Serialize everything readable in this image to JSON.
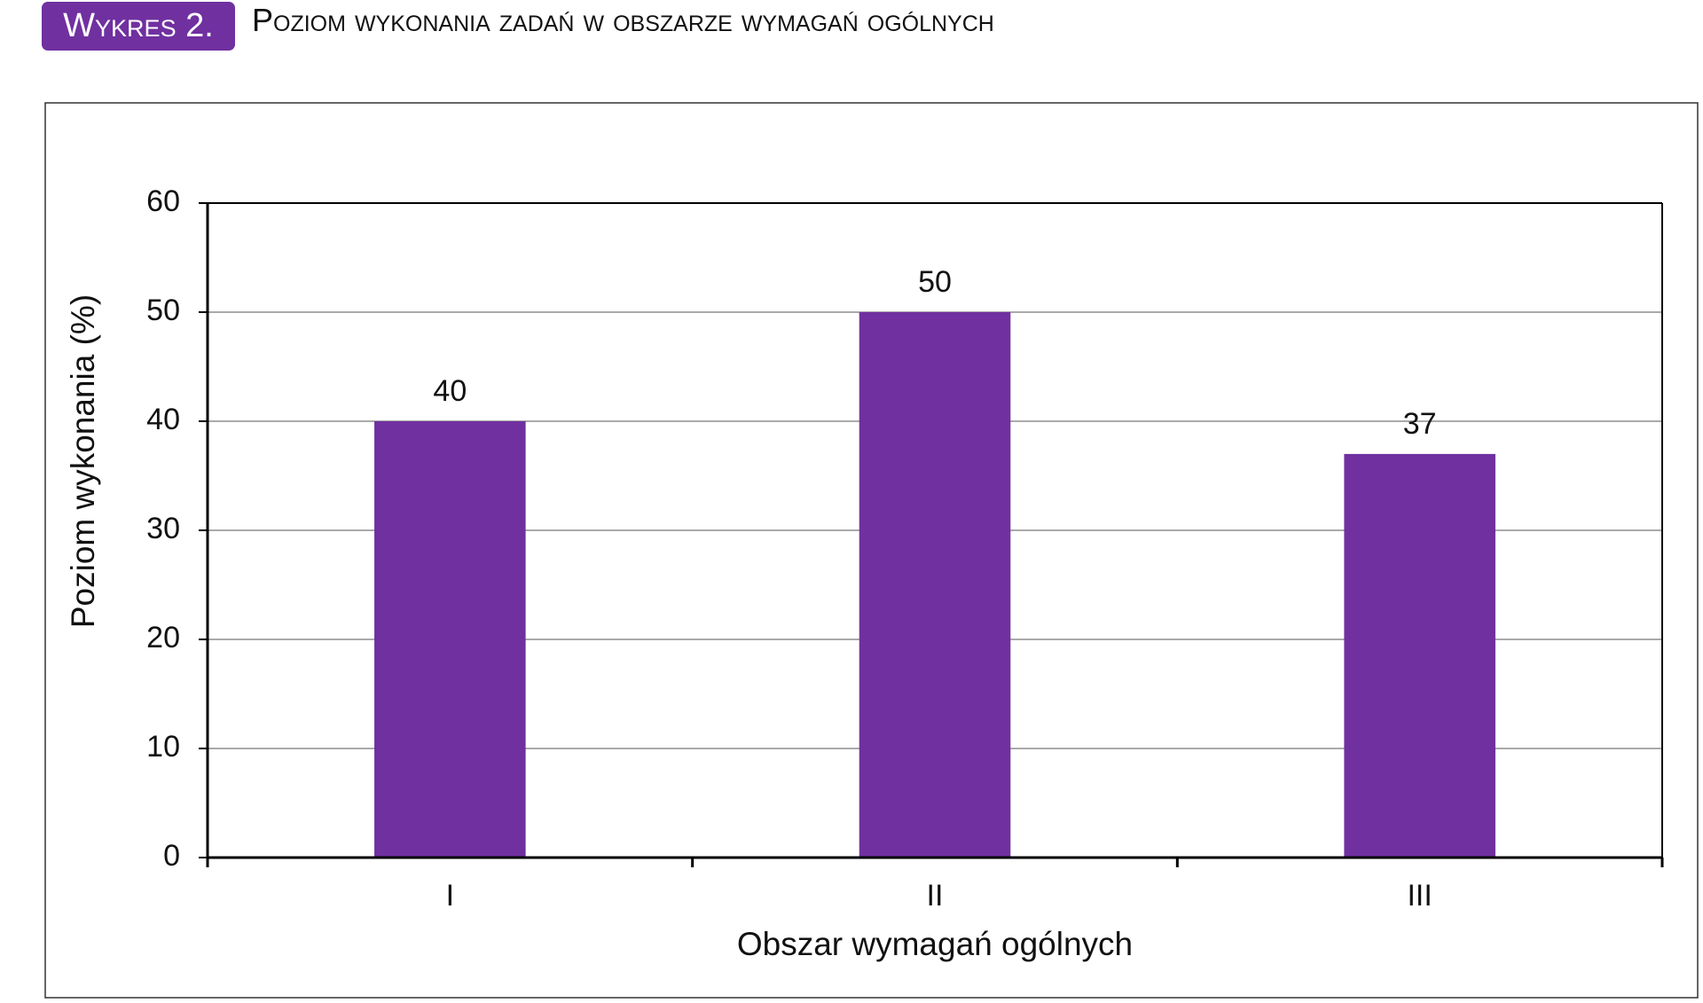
{
  "header": {
    "badge": "Wykres 2.",
    "title": "Poziom wykonania zadań w obszarze wymagań ogólnych"
  },
  "chart_data": {
    "type": "bar",
    "categories": [
      "I",
      "II",
      "III"
    ],
    "values": [
      40,
      50,
      37
    ],
    "color": "#7030a0",
    "x_label": "Obszar wymagań ogólnych",
    "y_label": "Poziom wykonania (%)",
    "ylim": [
      0,
      60
    ],
    "yticks": [
      0,
      10,
      20,
      30,
      40,
      50,
      60
    ],
    "grid": true
  }
}
